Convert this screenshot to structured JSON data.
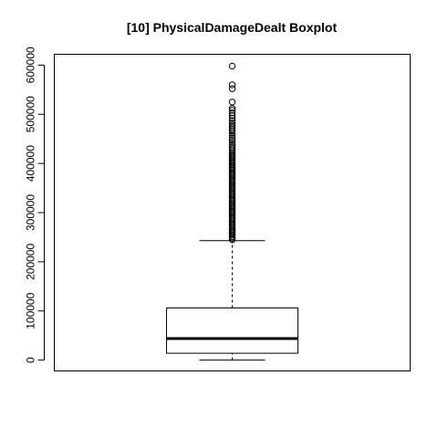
{
  "chart_data": {
    "type": "boxplot",
    "title": "[10] PhysicalDamageDealt Boxplot",
    "xlabel": "",
    "ylabel": "",
    "ylim": [
      -22000,
      622000
    ],
    "yticks": [
      0,
      100000,
      200000,
      300000,
      400000,
      500000,
      600000
    ],
    "ytick_labels": [
      "0",
      "100000",
      "200000",
      "300000",
      "400000",
      "500000",
      "600000"
    ],
    "grid": false,
    "legend": "none",
    "series": [
      {
        "stats": {
          "whisker_low": 0,
          "q1": 14000,
          "median": 44000,
          "q3": 106000,
          "whisker_high": 243000
        },
        "outliers": [
          245000,
          248000,
          251000,
          254000,
          257000,
          260000,
          263000,
          266000,
          269000,
          272000,
          275000,
          278000,
          281000,
          284000,
          287000,
          290000,
          293000,
          296000,
          299000,
          302000,
          305000,
          308000,
          311000,
          314000,
          317000,
          320000,
          323000,
          326000,
          329000,
          332000,
          335000,
          338000,
          341000,
          344000,
          347000,
          350000,
          353000,
          356000,
          359000,
          362000,
          365000,
          368000,
          371000,
          374000,
          377000,
          380000,
          383000,
          386000,
          389000,
          392000,
          395000,
          398000,
          401000,
          404000,
          407000,
          410000,
          413000,
          416000,
          419000,
          422000,
          426000,
          430000,
          434000,
          438000,
          443000,
          448000,
          452000,
          457000,
          462000,
          466000,
          470000,
          474000,
          478000,
          482000,
          487000,
          492000,
          497000,
          503000,
          508000,
          512000,
          525000,
          552000,
          560000,
          598000
        ]
      }
    ],
    "colors": {
      "stroke": "#000000",
      "background": "#ffffff"
    }
  }
}
